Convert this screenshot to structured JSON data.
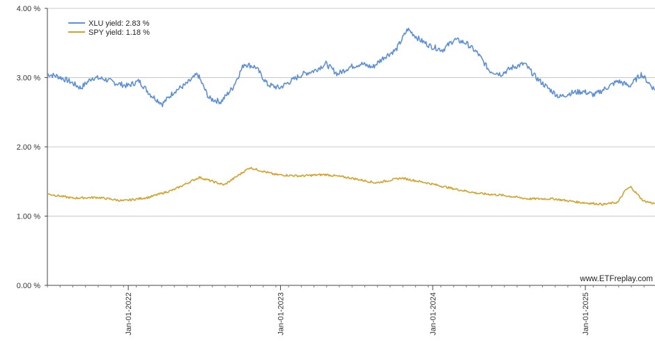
{
  "chart_data": {
    "type": "line",
    "title": "",
    "xlabel": "",
    "ylabel": "",
    "ylim": [
      0,
      4
    ],
    "y_ticks": [
      "0.00 %",
      "1.00 %",
      "2.00 %",
      "3.00 %",
      "4.00 %"
    ],
    "y_tick_values": [
      0,
      1,
      2,
      3,
      4
    ],
    "x_ticks": [
      "Jan-01-2022",
      "Jan-01-2023",
      "Jan-01-2024",
      "Jan-01-2025"
    ],
    "x_tick_dates": [
      "2022-01-01",
      "2023-01-01",
      "2024-01-01",
      "2025-01-01"
    ],
    "xlim": [
      "2021-06-21",
      "2025-06-17"
    ],
    "grid": "horizontal",
    "legend_position": "top-left",
    "watermark": "www.ETFreplay.com",
    "series": [
      {
        "name": "XLU yield: 2.83 %",
        "color": "#5b8fdc",
        "x": [
          "2021-06-21",
          "2021-07-15",
          "2021-08-12",
          "2021-09-09",
          "2021-10-07",
          "2021-11-04",
          "2021-12-02",
          "2021-12-30",
          "2022-01-27",
          "2022-02-24",
          "2022-03-24",
          "2022-04-21",
          "2022-05-19",
          "2022-06-16",
          "2022-07-14",
          "2022-08-11",
          "2022-09-08",
          "2022-10-06",
          "2022-11-03",
          "2022-12-01",
          "2022-12-29",
          "2023-01-26",
          "2023-02-23",
          "2023-03-23",
          "2023-04-20",
          "2023-05-18",
          "2023-06-15",
          "2023-07-13",
          "2023-08-10",
          "2023-09-07",
          "2023-10-05",
          "2023-11-02",
          "2023-11-30",
          "2023-12-28",
          "2024-01-25",
          "2024-02-22",
          "2024-03-21",
          "2024-04-18",
          "2024-05-16",
          "2024-06-13",
          "2024-07-11",
          "2024-08-08",
          "2024-09-05",
          "2024-10-03",
          "2024-10-31",
          "2024-11-28",
          "2024-12-26",
          "2025-01-23",
          "2025-02-20",
          "2025-03-20",
          "2025-04-17",
          "2025-05-15",
          "2025-06-17"
        ],
        "values": [
          3.05,
          3.02,
          2.95,
          2.85,
          3.0,
          2.98,
          2.92,
          2.88,
          2.95,
          2.75,
          2.62,
          2.8,
          2.9,
          3.05,
          2.7,
          2.65,
          2.85,
          3.2,
          3.15,
          2.9,
          2.85,
          2.95,
          3.05,
          3.1,
          3.2,
          3.05,
          3.15,
          3.2,
          3.15,
          3.3,
          3.4,
          3.7,
          3.55,
          3.45,
          3.4,
          3.55,
          3.5,
          3.35,
          3.1,
          3.05,
          3.15,
          3.2,
          3.0,
          2.85,
          2.72,
          2.78,
          2.8,
          2.75,
          2.85,
          2.95,
          2.88,
          3.05,
          2.82
        ]
      },
      {
        "name": "SPY yield: 1.18 %",
        "color": "#d4a22b",
        "x": [
          "2021-06-21",
          "2021-08-20",
          "2021-10-20",
          "2021-12-20",
          "2022-02-18",
          "2022-04-20",
          "2022-06-20",
          "2022-08-19",
          "2022-10-19",
          "2022-12-19",
          "2023-02-17",
          "2023-04-19",
          "2023-06-19",
          "2023-08-18",
          "2023-10-18",
          "2023-12-18",
          "2024-02-16",
          "2024-04-17",
          "2024-06-17",
          "2024-08-16",
          "2024-10-16",
          "2024-12-16",
          "2025-02-14",
          "2025-03-20",
          "2025-04-08",
          "2025-04-20",
          "2025-05-20",
          "2025-06-17"
        ],
        "values": [
          1.32,
          1.26,
          1.27,
          1.22,
          1.27,
          1.38,
          1.56,
          1.45,
          1.7,
          1.6,
          1.58,
          1.6,
          1.55,
          1.48,
          1.55,
          1.48,
          1.4,
          1.33,
          1.3,
          1.25,
          1.25,
          1.2,
          1.17,
          1.2,
          1.38,
          1.42,
          1.22,
          1.18
        ]
      }
    ]
  }
}
